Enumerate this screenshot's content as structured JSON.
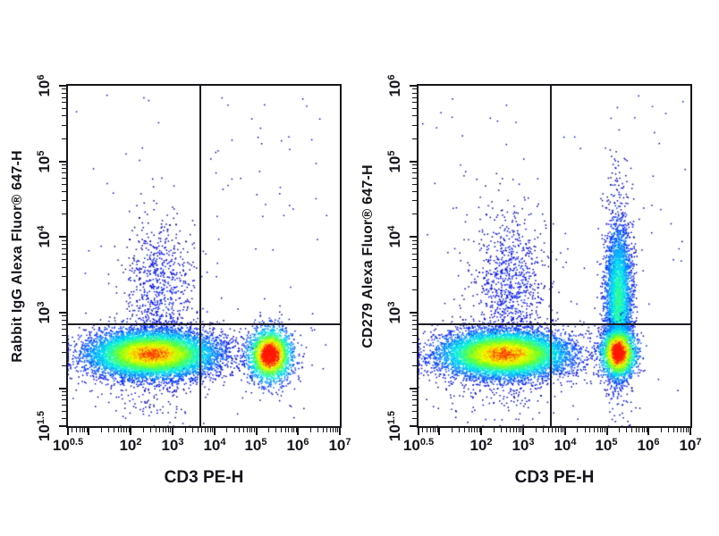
{
  "figure": {
    "background": "#ffffff"
  },
  "style": {
    "axis_color": "#16161c",
    "gate_color": "#1c1c22",
    "tick_label_color": "#14141b",
    "density_colormap": [
      {
        "t": 0.0,
        "c": "#00007f"
      },
      {
        "t": 0.1,
        "c": "#0000e8"
      },
      {
        "t": 0.25,
        "c": "#0040ff"
      },
      {
        "t": 0.4,
        "c": "#00a4ff"
      },
      {
        "t": 0.52,
        "c": "#00e8f0"
      },
      {
        "t": 0.62,
        "c": "#30ffa0"
      },
      {
        "t": 0.7,
        "c": "#50ff40"
      },
      {
        "t": 0.8,
        "c": "#c0ff00"
      },
      {
        "t": 0.88,
        "c": "#ffff00"
      },
      {
        "t": 0.94,
        "c": "#ff9000"
      },
      {
        "t": 1.0,
        "c": "#ff1800"
      }
    ]
  },
  "chart_data": [
    {
      "type": "scatter",
      "subtype": "flow-cytometry-density-plot",
      "xlabel": "CD3 PE-H",
      "ylabel": "Rabbit IgG Alexa Fluor® 647-H",
      "x_scale": "log",
      "y_scale": "log",
      "xlim_log10": [
        0.5,
        7
      ],
      "ylim_log10": [
        1.5,
        6
      ],
      "xticks": [
        {
          "v": 0.5,
          "base": "10",
          "exp": "0.5"
        },
        {
          "v": 2,
          "base": "10",
          "exp": "2"
        },
        {
          "v": 3,
          "base": "10",
          "exp": "3"
        },
        {
          "v": 4,
          "base": "10",
          "exp": "4"
        },
        {
          "v": 5,
          "base": "10",
          "exp": "5"
        },
        {
          "v": 6,
          "base": "10",
          "exp": "6"
        },
        {
          "v": 7,
          "base": "10",
          "exp": "7"
        }
      ],
      "yticks": [
        {
          "v": 6,
          "base": "10",
          "exp": "6"
        },
        {
          "v": 5,
          "base": "10",
          "exp": "5"
        },
        {
          "v": 4,
          "base": "10",
          "exp": "4"
        },
        {
          "v": 3,
          "base": "10",
          "exp": "3"
        },
        {
          "v": 1.5,
          "base": "10",
          "exp": "1.5"
        }
      ],
      "quadrant_gate_log10": {
        "x": 3.66,
        "y": 2.85
      },
      "populations": [
        {
          "name": "background-sparse",
          "type": "uniform",
          "x0": 0.55,
          "x1": 6.9,
          "y0": 1.6,
          "y1": 5.9,
          "n": 110,
          "peak": 0.1
        },
        {
          "name": "cd3neg-low-tail",
          "type": "gauss",
          "cx": 2.5,
          "cy": 2.05,
          "sx": 0.65,
          "sy": 0.28,
          "n": 200,
          "peak": 0.12
        },
        {
          "name": "cd3neg-plume",
          "type": "gauss",
          "cx": 2.7,
          "cy": 3.3,
          "sx": 0.4,
          "sy": 0.48,
          "n": 800,
          "peak": 0.16
        },
        {
          "name": "mid-band-sparse",
          "type": "gauss",
          "cx": 4.25,
          "cy": 2.45,
          "sx": 0.45,
          "sy": 0.16,
          "n": 110,
          "peak": 0.13
        },
        {
          "name": "cd3neg-main",
          "type": "gauss",
          "cx": 2.52,
          "cy": 2.45,
          "sx": 0.75,
          "sy": 0.155,
          "n": 9500,
          "peak": 0.97
        },
        {
          "name": "cd3pos-igG-neg",
          "type": "gauss",
          "cx": 5.33,
          "cy": 2.44,
          "sx": 0.26,
          "sy": 0.175,
          "n": 2600,
          "peak": 1.12
        }
      ]
    },
    {
      "type": "scatter",
      "subtype": "flow-cytometry-density-plot",
      "xlabel": "CD3 PE-H",
      "ylabel": "CD279 Alexa Fluor® 647-H",
      "x_scale": "log",
      "y_scale": "log",
      "xlim_log10": [
        0.5,
        7
      ],
      "ylim_log10": [
        1.5,
        6
      ],
      "xticks": [
        {
          "v": 0.5,
          "base": "10",
          "exp": "0.5"
        },
        {
          "v": 2,
          "base": "10",
          "exp": "2"
        },
        {
          "v": 3,
          "base": "10",
          "exp": "3"
        },
        {
          "v": 4,
          "base": "10",
          "exp": "4"
        },
        {
          "v": 5,
          "base": "10",
          "exp": "5"
        },
        {
          "v": 6,
          "base": "10",
          "exp": "6"
        },
        {
          "v": 7,
          "base": "10",
          "exp": "7"
        }
      ],
      "yticks": [
        {
          "v": 6,
          "base": "10",
          "exp": "6"
        },
        {
          "v": 5,
          "base": "10",
          "exp": "5"
        },
        {
          "v": 4,
          "base": "10",
          "exp": "4"
        },
        {
          "v": 3,
          "base": "10",
          "exp": "3"
        },
        {
          "v": 1.5,
          "base": "10",
          "exp": "1.5"
        }
      ],
      "quadrant_gate_log10": {
        "x": 3.66,
        "y": 2.85
      },
      "populations": [
        {
          "name": "background-sparse",
          "type": "uniform",
          "x0": 0.55,
          "x1": 6.9,
          "y0": 1.6,
          "y1": 5.9,
          "n": 120,
          "peak": 0.1
        },
        {
          "name": "cd3neg-low-tail",
          "type": "gauss",
          "cx": 2.5,
          "cy": 2.05,
          "sx": 0.65,
          "sy": 0.28,
          "n": 200,
          "peak": 0.12
        },
        {
          "name": "cd3neg-plume",
          "type": "gauss",
          "cx": 2.7,
          "cy": 3.35,
          "sx": 0.42,
          "sy": 0.5,
          "n": 900,
          "peak": 0.16
        },
        {
          "name": "above-column-sparse",
          "type": "gauss",
          "cx": 5.3,
          "cy": 4.6,
          "sx": 0.22,
          "sy": 0.35,
          "n": 45,
          "peak": 0.1
        },
        {
          "name": "cd3neg-main",
          "type": "gauss",
          "cx": 2.55,
          "cy": 2.45,
          "sx": 0.75,
          "sy": 0.155,
          "n": 9500,
          "peak": 0.97
        },
        {
          "name": "cd3pos-cd279pos-column",
          "type": "gauss",
          "cx": 5.28,
          "cy": 3.15,
          "sx": 0.16,
          "sy": 0.52,
          "n": 3800,
          "peak": 0.62
        },
        {
          "name": "cd3pos-bright-core",
          "type": "gauss",
          "cx": 5.28,
          "cy": 2.47,
          "sx": 0.21,
          "sy": 0.17,
          "n": 2400,
          "peak": 1.12
        }
      ]
    }
  ]
}
